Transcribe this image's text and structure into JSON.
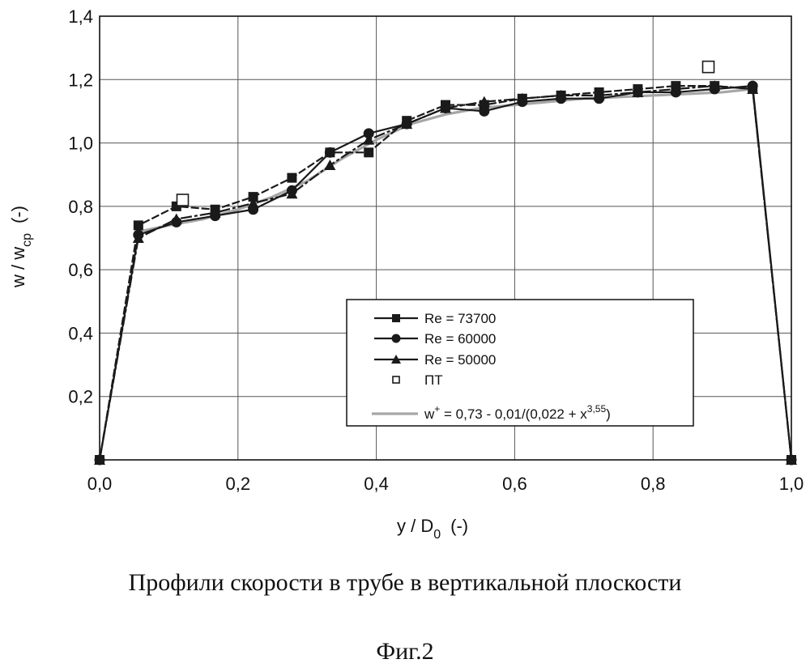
{
  "chart_data": {
    "type": "line",
    "xlabel": "y / D",
    "xlabel_sub": "0",
    "xlabel_unit": "(-)",
    "ylabel": "w / w",
    "ylabel_sub": "cp",
    "ylabel_unit": "(-)",
    "xlim": [
      0,
      1.0
    ],
    "ylim": [
      0,
      1.4
    ],
    "x_ticks": [
      "0,0",
      "0,2",
      "0,4",
      "0,6",
      "0,8",
      "1,0"
    ],
    "y_ticks": [
      "0,2",
      "0,4",
      "0,6",
      "0,8",
      "1,0",
      "1,2",
      "1,4"
    ],
    "grid": true,
    "legend_position": "bottom-right",
    "series": [
      {
        "name": "Re = 73700",
        "marker": "square",
        "x": [
          0,
          0.056,
          0.111,
          0.167,
          0.222,
          0.278,
          0.333,
          0.389,
          0.444,
          0.5,
          0.556,
          0.611,
          0.667,
          0.722,
          0.778,
          0.833,
          0.889,
          0.944,
          1.0
        ],
        "y": [
          0,
          0.74,
          0.8,
          0.79,
          0.83,
          0.89,
          0.97,
          0.97,
          1.07,
          1.12,
          1.12,
          1.14,
          1.15,
          1.16,
          1.17,
          1.18,
          1.18,
          1.17,
          0
        ]
      },
      {
        "name": "Re = 60000",
        "marker": "circle",
        "x": [
          0,
          0.056,
          0.111,
          0.167,
          0.222,
          0.278,
          0.333,
          0.389,
          0.444,
          0.5,
          0.556,
          0.611,
          0.667,
          0.722,
          0.778,
          0.833,
          0.889,
          0.944,
          1.0
        ],
        "y": [
          0,
          0.71,
          0.75,
          0.77,
          0.79,
          0.85,
          0.97,
          1.03,
          1.06,
          1.11,
          1.1,
          1.13,
          1.14,
          1.14,
          1.16,
          1.16,
          1.17,
          1.18,
          0
        ]
      },
      {
        "name": "Re = 50000",
        "marker": "triangle",
        "x": [
          0,
          0.056,
          0.111,
          0.167,
          0.222,
          0.278,
          0.333,
          0.389,
          0.444,
          0.5,
          0.556,
          0.611,
          0.667,
          0.722,
          0.778,
          0.833,
          0.889,
          0.944,
          1.0
        ],
        "y": [
          0,
          0.7,
          0.76,
          0.78,
          0.81,
          0.84,
          0.93,
          1.01,
          1.06,
          1.11,
          1.13,
          1.14,
          1.15,
          1.15,
          1.16,
          1.17,
          1.18,
          1.17,
          0
        ]
      },
      {
        "name": "ПТ",
        "marker": "open-square",
        "x": [
          0.12,
          0.88
        ],
        "y": [
          0.82,
          1.24
        ]
      },
      {
        "name": "w⁺ = 0,73 - 0,01/(0,022 + x³˒⁵⁵)",
        "legend_main": "w",
        "legend_sup1": "+",
        "legend_mid": " = 0,73 - 0,01/(0,022 + x",
        "legend_sup2": "3,55",
        "legend_end": ")",
        "marker": "none",
        "x": [
          0.056,
          0.1,
          0.15,
          0.2,
          0.25,
          0.3,
          0.35,
          0.4,
          0.45,
          0.5,
          0.55,
          0.6,
          0.7,
          0.8,
          0.9,
          0.944
        ],
        "y": [
          0.72,
          0.74,
          0.76,
          0.79,
          0.83,
          0.88,
          0.95,
          1.01,
          1.06,
          1.09,
          1.11,
          1.12,
          1.14,
          1.15,
          1.16,
          1.17
        ]
      }
    ]
  },
  "caption": {
    "title": "Профили скорости в трубе в вертикальной плоскости",
    "figure": "Фиг.2"
  },
  "colors": {
    "series_line": "#1a1a1a",
    "fit_line": "#a6a6a6",
    "grid": "#555555"
  }
}
